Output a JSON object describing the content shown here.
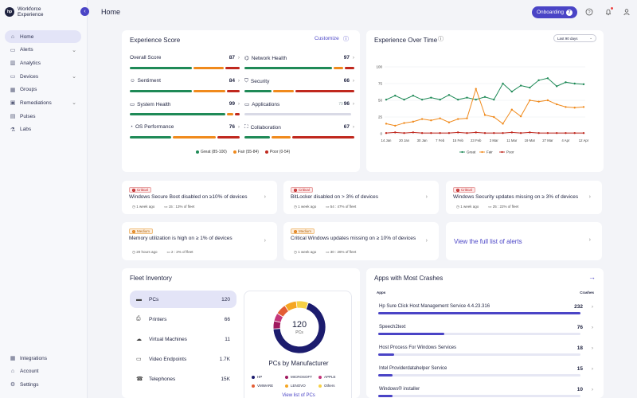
{
  "sidebar": {
    "logo_mark": "hp",
    "brand_line1": "Workforce",
    "brand_line2": "Experience",
    "items": [
      {
        "label": "Home",
        "icon": "home-icon",
        "active": true
      },
      {
        "label": "Alerts",
        "icon": "alert-icon",
        "expandable": true
      },
      {
        "label": "Analytics",
        "icon": "analytics-icon"
      },
      {
        "label": "Devices",
        "icon": "devices-icon",
        "expandable": true
      },
      {
        "label": "Groups",
        "icon": "groups-icon"
      },
      {
        "label": "Remediations",
        "icon": "remediation-icon",
        "expandable": true
      },
      {
        "label": "Pulses",
        "icon": "pulse-icon"
      },
      {
        "label": "Labs",
        "icon": "labs-icon"
      }
    ],
    "bottom": [
      {
        "label": "Integrations",
        "icon": "integrations-icon"
      },
      {
        "label": "Account",
        "icon": "account-icon"
      },
      {
        "label": "Settings",
        "icon": "settings-icon"
      }
    ]
  },
  "header": {
    "title": "Home",
    "onboarding_label": "Onboarding",
    "onboarding_badge": "7"
  },
  "experience_score": {
    "title": "Experience Score",
    "customize_label": "Customize",
    "items": [
      {
        "label": "Overall Score",
        "value": "87",
        "icon": ""
      },
      {
        "label": "Network Health",
        "value": "97",
        "icon": "network-icon"
      },
      {
        "label": "Sentiment",
        "value": "84",
        "icon": "sentiment-icon"
      },
      {
        "label": "Security",
        "value": "66",
        "icon": "security-icon"
      },
      {
        "label": "System Health",
        "value": "99",
        "icon": "system-health-icon"
      },
      {
        "label": "Applications",
        "value": "96",
        "extra": "79",
        "icon": "applications-icon"
      },
      {
        "label": "OS Performance",
        "value": "76",
        "icon": "os-performance-icon"
      },
      {
        "label": "Collaboration",
        "value": "67",
        "icon": "collaboration-icon"
      }
    ],
    "legend": {
      "great": "Great (85-100)",
      "fair": "Fair (55-84)",
      "poor": "Poor (0-54)"
    },
    "colors": {
      "great": "#1f8a57",
      "fair": "#f08a1c",
      "poor": "#c0281e"
    }
  },
  "experience_over_time": {
    "title": "Experience Over Time",
    "range_label": "Last 90 days"
  },
  "chart_data": {
    "type": "line",
    "title": "Experience Over Time",
    "categories": [
      "14 Jan",
      "",
      "20 Jan",
      "",
      "30 Jan",
      "",
      "7 Feb",
      "",
      "15 Feb",
      "",
      "23 Feb",
      "",
      "3 Mar",
      "",
      "11 Mar",
      "",
      "19 Mar",
      "",
      "27 Mar",
      "",
      "4 Apr",
      "",
      "12 Apr"
    ],
    "ylim": [
      0,
      100
    ],
    "yticks": [
      0,
      25,
      50,
      75,
      100
    ],
    "series": [
      {
        "name": "Great",
        "color": "#1f8a57",
        "values": [
          51,
          57,
          51,
          57,
          51,
          54,
          51,
          58,
          51,
          54,
          51,
          55,
          51,
          75,
          63,
          72,
          69,
          80,
          83,
          71,
          77,
          75,
          74
        ]
      },
      {
        "name": "Fair",
        "color": "#f08a1c",
        "values": [
          15,
          12,
          16,
          18,
          22,
          20,
          23,
          17,
          22,
          23,
          67,
          28,
          25,
          15,
          36,
          26,
          50,
          48,
          50,
          44,
          40,
          39,
          40
        ]
      },
      {
        "name": "Poor",
        "color": "#c0281e",
        "values": [
          1,
          2,
          1,
          2,
          1,
          1,
          1,
          1,
          2,
          1,
          2,
          1,
          1,
          1,
          2,
          1,
          2,
          1,
          1,
          1,
          1,
          1,
          1
        ]
      }
    ]
  },
  "alerts": [
    {
      "severity": "Critical",
      "title": "Windows Secure Boot disabled on ≥10% of devices",
      "time": "1 week ago",
      "fleet": "15 : 13% of fleet"
    },
    {
      "severity": "Critical",
      "title": "BitLocker disabled on > 3% of devices",
      "time": "1 week ago",
      "fleet": "54 : 47% of fleet"
    },
    {
      "severity": "Critical",
      "title": "Windows Security updates missing on ≥ 3% of devices",
      "time": "1 week ago",
      "fleet": "25 : 22% of fleet"
    },
    {
      "severity": "Medium",
      "title": "Memory utilization is high on ≥ 1% of devices",
      "time": "20 hours ago",
      "fleet": "2 : 2% of fleet"
    },
    {
      "severity": "Medium",
      "title": "Critical Windows updates missing on ≥ 10% of devices",
      "time": "1 week ago",
      "fleet": "30 : 26% of fleet"
    }
  ],
  "full_alerts_link": "View the full list of alerts",
  "fleet": {
    "title": "Fleet Inventory",
    "items": [
      {
        "label": "PCs",
        "value": "120",
        "icon": "pc-icon",
        "selected": true
      },
      {
        "label": "Printers",
        "value": "66",
        "icon": "printer-icon"
      },
      {
        "label": "Virtual Machines",
        "value": "11",
        "icon": "cloud-icon"
      },
      {
        "label": "Video Endpoints",
        "value": "1.7K",
        "icon": "video-icon"
      },
      {
        "label": "Telephones",
        "value": "15K",
        "icon": "telephone-icon"
      }
    ],
    "donut": {
      "total": "120",
      "unit": "PCs",
      "caption": "PCs by Manufacturer",
      "link": "View list of PCs",
      "slices": [
        {
          "name": "HP",
          "value": 82,
          "color": "#1c1c6e"
        },
        {
          "name": "MICROSOFT",
          "value": 6,
          "color": "#a0195f"
        },
        {
          "name": "APPLE",
          "value": 6,
          "color": "#c4357a"
        },
        {
          "name": "VMWARE",
          "value": 8,
          "color": "#e35d34"
        },
        {
          "name": "LENOVO",
          "value": 9,
          "color": "#f5a623"
        },
        {
          "name": "Others",
          "value": 9,
          "color": "#f7d046"
        }
      ]
    }
  },
  "crashes": {
    "title": "Apps with Most Crashes",
    "col_apps": "Apps",
    "col_crashes": "Crashes",
    "max": 232,
    "rows": [
      {
        "name": "Hp Sure Click Host Management Service 4.4.23.316",
        "value": 232
      },
      {
        "name": "Speech2text",
        "value": 76
      },
      {
        "name": "Host Process For Windows Services",
        "value": 18
      },
      {
        "name": "Intel Providerdatahelper Service",
        "value": 15
      },
      {
        "name": "Windows® installer",
        "value": 10
      }
    ]
  }
}
